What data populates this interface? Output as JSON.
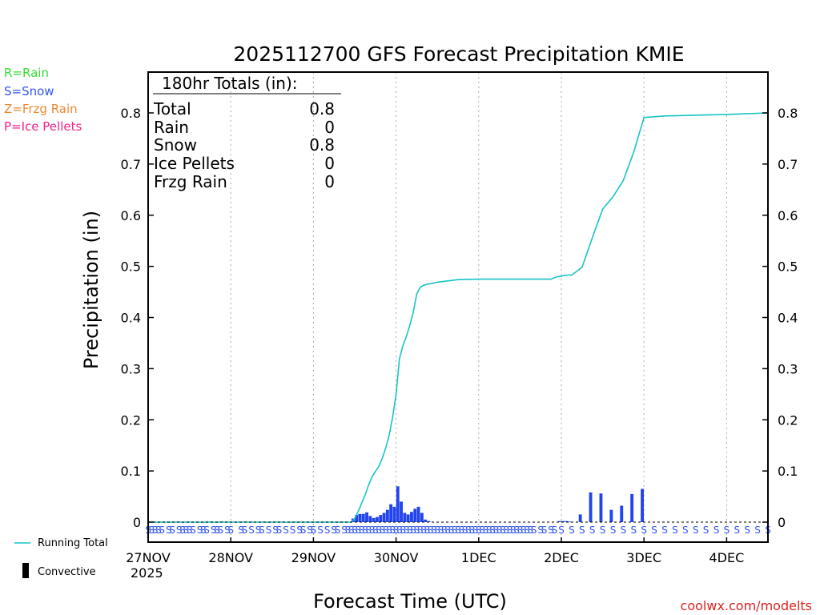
{
  "chart_data": {
    "type": "bar",
    "title": "2025112700 GFS Forecast Precipitation KMIE",
    "xlabel": "Forecast Time (UTC)",
    "ylabel": "Precipitation (in)",
    "ylim": [
      0,
      0.88
    ],
    "xlim_hours": [
      0,
      180
    ],
    "y_ticks": [
      0,
      0.1,
      0.2,
      0.3,
      0.4,
      0.5,
      0.6,
      0.7,
      0.8
    ],
    "y_tick_labels": [
      "0",
      "0.1",
      "0.2",
      "0.3",
      "0.4",
      "0.5",
      "0.6",
      "0.7",
      "0.8"
    ],
    "x_ticks": [
      {
        "hour": 0,
        "label": "27NOV"
      },
      {
        "hour": 24,
        "label": "28NOV"
      },
      {
        "hour": 48,
        "label": "29NOV"
      },
      {
        "hour": 72,
        "label": "30NOV"
      },
      {
        "hour": 96,
        "label": "1DEC"
      },
      {
        "hour": 120,
        "label": "2DEC"
      },
      {
        "hour": 144,
        "label": "3DEC"
      },
      {
        "hour": 168,
        "label": "4DEC"
      }
    ],
    "year_label": "2025",
    "legend_ptype": [
      {
        "text": "R=Rain",
        "color": "#33dd33"
      },
      {
        "text": "S=Snow",
        "color": "#3355ee"
      },
      {
        "text": "Z=Frzg Rain",
        "color": "#ee8833"
      },
      {
        "text": "P=Ice Pellets",
        "color": "#ee2288"
      }
    ],
    "legend_bottom": [
      {
        "text": "Running Total",
        "color": "#17c3c3"
      },
      {
        "text": "Convective",
        "color": "#000000"
      }
    ],
    "totals": {
      "header": "180hr Totals (in):",
      "rows": [
        {
          "label": "Total",
          "value": "0.8"
        },
        {
          "label": "Rain",
          "value": "0"
        },
        {
          "label": "Snow",
          "value": "0.8"
        },
        {
          "label": "Ice Pellets",
          "value": "0"
        },
        {
          "label": "Frzg Rain",
          "value": "0"
        }
      ]
    },
    "credit": "coolwx.com/modelts",
    "colors": {
      "bars": "#2244ee",
      "running_total": "#17c3c3",
      "snow_marker": "#3355ee",
      "grid": "#aaaaaa"
    },
    "series": [
      {
        "name": "Precipitation",
        "x_hours": [
          60,
          61,
          62,
          63,
          64,
          65,
          66,
          67,
          68,
          69,
          70,
          71,
          72,
          73,
          74,
          75,
          76,
          77,
          78,
          79,
          80,
          81,
          82,
          120,
          121,
          122,
          123,
          126,
          129,
          132,
          135,
          138,
          141,
          144
        ],
        "values": [
          0.007,
          0.014,
          0.016,
          0.016,
          0.019,
          0.012,
          0.008,
          0.01,
          0.014,
          0.018,
          0.024,
          0.035,
          0.03,
          0.07,
          0.04,
          0.018,
          0.015,
          0.02,
          0.026,
          0.03,
          0.018,
          0.005,
          0.002,
          0.002,
          0.002,
          0.002,
          0.001,
          0.015,
          0.058,
          0.056,
          0.024,
          0.032,
          0.055,
          0.065
        ]
      },
      {
        "name": "Running Total",
        "x_hours": [
          0,
          59,
          60,
          61,
          62,
          63,
          64,
          65,
          66,
          67,
          68,
          69,
          70,
          71,
          72,
          73,
          74,
          75,
          76,
          77,
          78,
          79,
          80,
          81,
          82,
          84,
          90,
          96,
          108,
          117,
          118,
          119,
          120,
          121,
          122,
          123,
          126,
          129,
          132,
          135,
          138,
          141,
          144,
          150,
          156,
          168,
          180
        ],
        "values": [
          0,
          0,
          0.007,
          0.021,
          0.037,
          0.053,
          0.072,
          0.088,
          0.099,
          0.109,
          0.125,
          0.145,
          0.17,
          0.205,
          0.25,
          0.32,
          0.345,
          0.363,
          0.385,
          0.41,
          0.446,
          0.459,
          0.463,
          0.465,
          0.466,
          0.469,
          0.474,
          0.475,
          0.475,
          0.475,
          0.478,
          0.48,
          0.481,
          0.482,
          0.483,
          0.483,
          0.498,
          0.556,
          0.612,
          0.636,
          0.668,
          0.723,
          0.791,
          0.794,
          0.795,
          0.797,
          0.8
        ]
      }
    ],
    "snow_markers": {
      "symbol": "S",
      "x_hours": [
        0,
        1,
        2,
        3,
        4,
        6,
        7,
        9,
        10,
        11,
        12,
        13,
        15,
        16,
        17,
        19,
        20,
        21,
        23,
        24,
        27,
        28,
        30,
        32,
        33,
        35,
        37,
        38,
        40,
        42,
        44,
        45,
        47,
        48,
        50,
        52,
        54,
        55,
        57,
        58,
        59,
        60,
        61,
        62,
        63,
        64,
        65,
        66,
        67,
        68,
        69,
        70,
        71,
        72,
        73,
        74,
        75,
        76,
        77,
        78,
        79,
        80,
        81,
        82,
        83,
        84,
        85,
        86,
        87,
        88,
        89,
        90,
        91,
        92,
        93,
        94,
        95,
        96,
        97,
        98,
        99,
        100,
        101,
        102,
        103,
        104,
        105,
        106,
        107,
        108,
        109,
        110,
        111,
        112,
        114,
        115,
        117,
        118,
        120,
        123,
        126,
        129,
        132,
        135,
        138,
        141,
        144,
        147,
        150,
        153,
        156,
        159,
        162,
        165,
        168,
        171,
        174,
        177,
        180
      ]
    }
  }
}
